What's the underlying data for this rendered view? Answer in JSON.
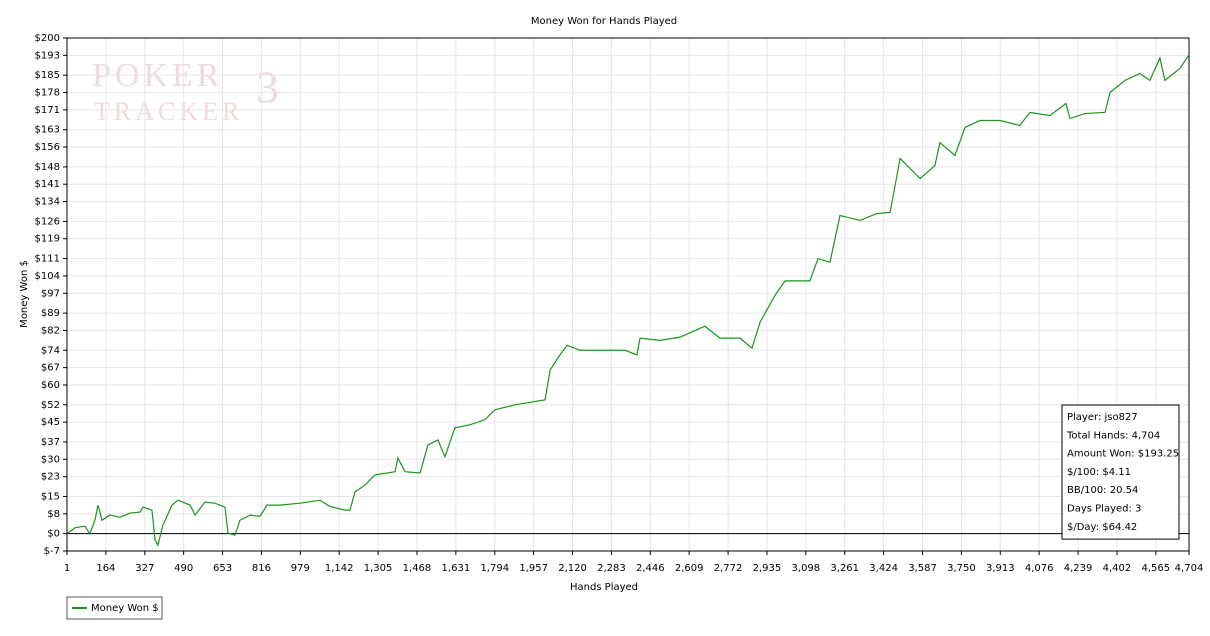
{
  "chart_data": {
    "type": "line",
    "title": "Money Won for Hands Played",
    "x_label": "Hands Played",
    "y_label": "Money Won $",
    "watermark": [
      "POKER",
      "TRACKER",
      "3"
    ],
    "grid": true,
    "xlim": [
      1,
      4704
    ],
    "ylim": [
      -7,
      200
    ],
    "xticks": [
      1,
      164,
      327,
      490,
      653,
      816,
      979,
      {
        "value": 1142,
        "label": "1,142"
      },
      {
        "value": 1305,
        "label": "1,305"
      },
      {
        "value": 1468,
        "label": "1,468"
      },
      {
        "value": 1631,
        "label": "1,631"
      },
      {
        "value": 1794,
        "label": "1,794"
      },
      {
        "value": 1957,
        "label": "1,957"
      },
      {
        "value": 2120,
        "label": "2,120"
      },
      {
        "value": 2283,
        "label": "2,283"
      },
      {
        "value": 2446,
        "label": "2,446"
      },
      {
        "value": 2609,
        "label": "2,609"
      },
      {
        "value": 2772,
        "label": "2,772"
      },
      {
        "value": 2935,
        "label": "2,935"
      },
      {
        "value": 3098,
        "label": "3,098"
      },
      {
        "value": 3261,
        "label": "3,261"
      },
      {
        "value": 3424,
        "label": "3,424"
      },
      {
        "value": 3587,
        "label": "3,587"
      },
      {
        "value": 3750,
        "label": "3,750"
      },
      {
        "value": 3913,
        "label": "3,913"
      },
      {
        "value": 4076,
        "label": "4,076"
      },
      {
        "value": 4239,
        "label": "4,239"
      },
      {
        "value": 4402,
        "label": "4,402"
      },
      {
        "value": 4565,
        "label": "4,565"
      },
      {
        "value": 4704,
        "label": "4,704"
      }
    ],
    "yticks": [
      {
        "value": -7,
        "label": "$-7"
      },
      {
        "value": 0,
        "label": "$0"
      },
      {
        "value": 8,
        "label": "$8"
      },
      {
        "value": 15,
        "label": "$15"
      },
      {
        "value": 23,
        "label": "$23"
      },
      {
        "value": 30,
        "label": "$30"
      },
      {
        "value": 37,
        "label": "$37"
      },
      {
        "value": 45,
        "label": "$45"
      },
      {
        "value": 52,
        "label": "$52"
      },
      {
        "value": 60,
        "label": "$60"
      },
      {
        "value": 67,
        "label": "$67"
      },
      {
        "value": 74,
        "label": "$74"
      },
      {
        "value": 82,
        "label": "$82"
      },
      {
        "value": 89,
        "label": "$89"
      },
      {
        "value": 97,
        "label": "$97"
      },
      {
        "value": 104,
        "label": "$104"
      },
      {
        "value": 111,
        "label": "$111"
      },
      {
        "value": 119,
        "label": "$119"
      },
      {
        "value": 126,
        "label": "$126"
      },
      {
        "value": 134,
        "label": "$134"
      },
      {
        "value": 141,
        "label": "$141"
      },
      {
        "value": 148,
        "label": "$148"
      },
      {
        "value": 156,
        "label": "$156"
      },
      {
        "value": 163,
        "label": "$163"
      },
      {
        "value": 171,
        "label": "$171"
      },
      {
        "value": 178,
        "label": "$178"
      },
      {
        "value": 185,
        "label": "$185"
      },
      {
        "value": 193,
        "label": "$193"
      },
      {
        "value": 200,
        "label": "$200"
      }
    ],
    "x": [
      1,
      35,
      76,
      97,
      118,
      131,
      148,
      181,
      223,
      265,
      307,
      320,
      357,
      370,
      382,
      403,
      441,
      466,
      517,
      538,
      579,
      621,
      663,
      676,
      705,
      726,
      768,
      810,
      839,
      894,
      978,
      1061,
      1103,
      1166,
      1187,
      1208,
      1250,
      1292,
      1376,
      1388,
      1418,
      1481,
      1514,
      1556,
      1585,
      1627,
      1690,
      1753,
      1795,
      1879,
      1942,
      2005,
      2026,
      2067,
      2097,
      2151,
      2235,
      2340,
      2390,
      2403,
      2487,
      2571,
      2675,
      2738,
      2822,
      2872,
      2906,
      2969,
      3011,
      3115,
      3149,
      3199,
      3241,
      3325,
      3396,
      3451,
      3493,
      3577,
      3639,
      3660,
      3723,
      3765,
      3828,
      3912,
      3995,
      4037,
      4121,
      4188,
      4205,
      4268,
      4352,
      4373,
      4436,
      4498,
      4540,
      4582,
      4603,
      4666,
      4704
    ],
    "series": [
      {
        "name": "Money Won $",
        "color": "#1a961a",
        "values": [
          0,
          2.4,
          3,
          0,
          5.4,
          11.5,
          5.4,
          7.5,
          6.6,
          8.3,
          8.7,
          10.7,
          9.5,
          -2.6,
          -4.7,
          3.4,
          11.5,
          13.5,
          11.5,
          7.5,
          12.7,
          12.3,
          10.7,
          0.2,
          -0.6,
          5.4,
          7.5,
          7,
          11.5,
          11.5,
          12.3,
          13.5,
          11,
          9.5,
          9.5,
          16.8,
          19.6,
          23.7,
          25,
          30.5,
          25,
          24.5,
          35.8,
          37.8,
          31,
          42.7,
          43.9,
          46,
          50,
          52,
          53,
          54,
          66,
          72.1,
          76,
          74,
          74,
          74,
          72.1,
          78.9,
          78,
          79.3,
          83.7,
          78.9,
          78.9,
          74.8,
          85.3,
          96.2,
          102,
          102,
          111,
          109.5,
          128.4,
          126.4,
          129.2,
          129.6,
          151.4,
          143.3,
          148.5,
          157.8,
          152.6,
          163.9,
          166.7,
          166.7,
          164.7,
          170,
          168.7,
          173.6,
          167.5,
          169.5,
          170,
          178,
          182.9,
          185.7,
          182.9,
          191.9,
          182.9,
          187.7,
          193.25
        ]
      }
    ],
    "legend": "bottom-left",
    "stats": [
      "Player: jso827",
      "Total Hands: 4,704",
      "Amount Won: $193.25",
      "$/100: $4.11",
      "BB/100: 20.54",
      "Days Played: 3",
      "$/Day: $64.42"
    ],
    "stats_position": "bottom-right"
  }
}
